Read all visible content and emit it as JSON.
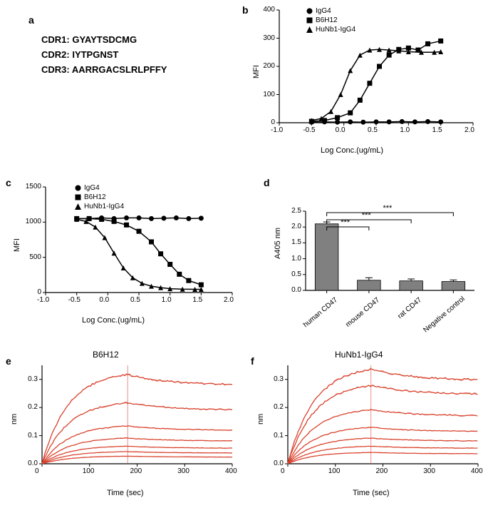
{
  "panel_a": {
    "label": "a",
    "cdr1": "CDR1:  GYAYTSDCMG",
    "cdr2": "CDR2:  IYTPGNST",
    "cdr3": "CDR3:  AARRGACSLRLPFFY"
  },
  "panel_b": {
    "label": "b",
    "ylabel": "MFI",
    "xlabel": "Log Conc.(ug/mL)",
    "xlim": [
      -1.0,
      2.0
    ],
    "ylim": [
      0,
      400
    ],
    "yticks": [
      0,
      100,
      200,
      300,
      400
    ],
    "xticks": [
      -1.0,
      -0.5,
      0.0,
      0.5,
      1.0,
      1.5,
      2.0
    ],
    "legend": [
      {
        "marker": "circle",
        "label": "IgG4"
      },
      {
        "marker": "square",
        "label": "B6H12"
      },
      {
        "marker": "triangle",
        "label": "HuNb1-IgG4"
      }
    ],
    "series": {
      "IgG4": {
        "x": [
          -0.5,
          -0.3,
          -0.1,
          0.1,
          0.3,
          0.5,
          0.7,
          0.9,
          1.1,
          1.3,
          1.5
        ],
        "y": [
          2,
          3,
          2,
          3,
          2,
          3,
          3,
          4,
          3,
          4,
          3
        ],
        "marker": "circle"
      },
      "B6H12": {
        "x": [
          -0.5,
          -0.3,
          -0.1,
          0.1,
          0.25,
          0.4,
          0.55,
          0.7,
          0.85,
          1.0,
          1.15,
          1.3,
          1.5
        ],
        "y": [
          5,
          8,
          18,
          35,
          80,
          140,
          200,
          240,
          260,
          265,
          258,
          280,
          290
        ],
        "marker": "square"
      },
      "HuNb1": {
        "x": [
          -0.5,
          -0.35,
          -0.2,
          -0.05,
          0.1,
          0.25,
          0.4,
          0.55,
          0.7,
          0.85,
          1.0,
          1.2,
          1.4,
          1.5
        ],
        "y": [
          8,
          15,
          40,
          100,
          185,
          240,
          258,
          260,
          258,
          255,
          252,
          250,
          250,
          252
        ],
        "marker": "triangle"
      }
    },
    "line_color": "#000000"
  },
  "panel_c": {
    "label": "c",
    "ylabel": "MFI",
    "xlabel": "Log Conc.(ug/mL)",
    "xlim": [
      -1.0,
      2.0
    ],
    "ylim": [
      0,
      1500
    ],
    "yticks": [
      0,
      500,
      1000,
      1500
    ],
    "xticks": [
      -1.0,
      -0.5,
      0.0,
      0.5,
      1.0,
      1.5,
      2.0
    ],
    "legend": [
      {
        "marker": "circle",
        "label": "IgG4"
      },
      {
        "marker": "square",
        "label": "B6H12"
      },
      {
        "marker": "triangle",
        "label": "HuNb1-IgG4"
      }
    ],
    "series": {
      "IgG4": {
        "x": [
          -0.5,
          -0.3,
          -0.1,
          0.1,
          0.3,
          0.5,
          0.7,
          0.9,
          1.1,
          1.3,
          1.5
        ],
        "y": [
          1050,
          1050,
          1060,
          1050,
          1060,
          1060,
          1050,
          1055,
          1060,
          1050,
          1055
        ],
        "marker": "circle"
      },
      "B6H12": {
        "x": [
          -0.5,
          -0.3,
          -0.1,
          0.1,
          0.3,
          0.5,
          0.7,
          0.85,
          1.0,
          1.15,
          1.3,
          1.5
        ],
        "y": [
          1050,
          1050,
          1040,
          1010,
          960,
          870,
          720,
          550,
          400,
          260,
          170,
          110
        ],
        "marker": "square"
      },
      "HuNb1": {
        "x": [
          -0.5,
          -0.35,
          -0.2,
          -0.05,
          0.1,
          0.25,
          0.4,
          0.55,
          0.7,
          0.85,
          1.0,
          1.2,
          1.4,
          1.5
        ],
        "y": [
          1040,
          1010,
          930,
          780,
          560,
          350,
          210,
          130,
          90,
          70,
          55,
          48,
          45,
          45
        ],
        "marker": "triangle"
      }
    },
    "line_color": "#000000"
  },
  "panel_d": {
    "label": "d",
    "ylabel": "A405 nm",
    "ylim": [
      0,
      2.5
    ],
    "yticks": [
      0.0,
      0.5,
      1.0,
      1.5,
      2.0,
      2.5
    ],
    "categories": [
      "human CD47",
      "mouse CD47",
      "rat CD47",
      "Negative control"
    ],
    "values": [
      2.1,
      0.32,
      0.3,
      0.28
    ],
    "errors": [
      0.06,
      0.08,
      0.06,
      0.05
    ],
    "bar_color": "#808080",
    "sig": "***"
  },
  "panel_e": {
    "label": "e",
    "title": "B6H12",
    "ylabel": "nm",
    "xlabel": "Time (sec)",
    "xlim": [
      0,
      400
    ],
    "ylim": [
      0,
      0.35
    ],
    "xticks": [
      0,
      100,
      200,
      300,
      400
    ],
    "yticks": [
      0.0,
      0.1,
      0.2,
      0.3
    ],
    "trace_color": "#d94530",
    "traces_peak": [
      0.33,
      0.225,
      0.14,
      0.095,
      0.065,
      0.045,
      0.028
    ],
    "break_x": 180
  },
  "panel_f": {
    "label": "f",
    "title": "HuNb1-IgG4",
    "ylabel": "nm",
    "xlabel": "Time (sec)",
    "xlim": [
      0,
      400
    ],
    "ylim": [
      0,
      0.35
    ],
    "xticks": [
      0,
      100,
      200,
      300,
      400
    ],
    "yticks": [
      0.0,
      0.1,
      0.2,
      0.3
    ],
    "trace_color": "#d94530",
    "traces_peak": [
      0.35,
      0.29,
      0.2,
      0.135,
      0.095,
      0.065,
      0.042
    ],
    "break_x": 175
  }
}
